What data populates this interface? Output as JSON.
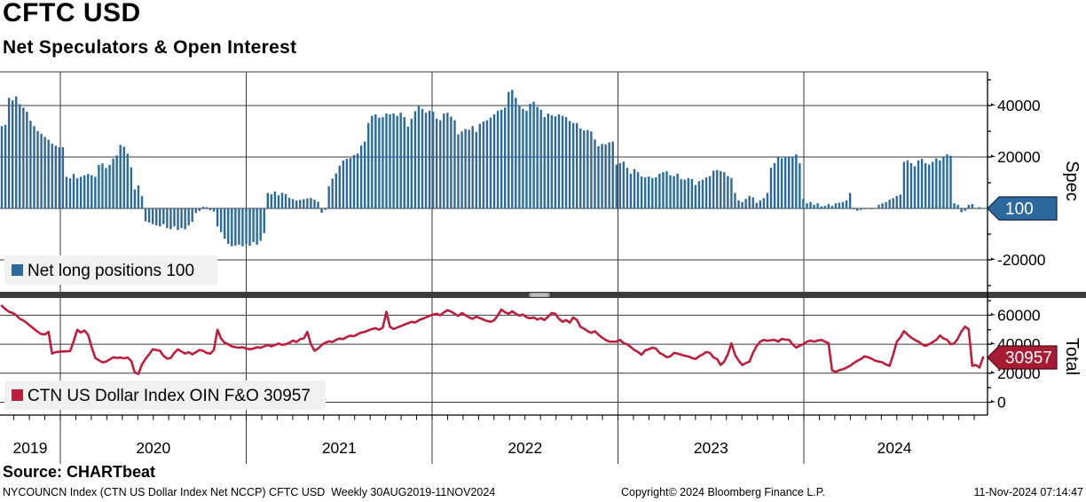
{
  "header": {
    "title": "CFTC USD",
    "subtitle": "Net Speculators & Open Interest"
  },
  "footer": {
    "source": "Source: CHARTbeat",
    "description": "NYCOUNCN Index (CTN US Dollar Index Net NCCP) CFTC USD  Weekly 30AUG2019-11NOV2024",
    "copyright": "Copyright© 2024 Bloomberg Finance L.P.",
    "timestamp": "11-Nov-2024 07:14:47"
  },
  "colors": {
    "bar_blue": "#2c699e",
    "line_red": "#be1e3c",
    "tag_blue": "#2c699e",
    "tag_red": "#a81c33",
    "tag_border_blue": "#14253c",
    "tag_border_red": "#4d0d18",
    "separator": "#3d3d3d",
    "handle": "#9a9a9a",
    "legend_bg": "#f1f1f1",
    "grid": "#3a3a3a",
    "axis": "#000000"
  },
  "chart_data": [
    {
      "type": "bar",
      "panel_title": "Spec",
      "legend": "Net long positions 100",
      "last_value_tag": "100",
      "frequency": "weekly",
      "x_range": "30AUG2019-11NOV2024",
      "year_labels": [
        "2019",
        "2020",
        "2021",
        "2022",
        "2023",
        "2024"
      ],
      "labeled_ticks": [
        40000,
        20000,
        -20000
      ],
      "gridline_values": [
        40000,
        20000,
        0,
        -20000
      ],
      "minor_ticks": [
        50000,
        30000,
        10000,
        -10000,
        -30000
      ],
      "ylim": [
        -31500,
        53000
      ],
      "values": [
        32000,
        32500,
        43000,
        42000,
        43600,
        40500,
        39200,
        37600,
        34100,
        32000,
        30100,
        29000,
        27800,
        26700,
        25200,
        24400,
        23800,
        23800,
        12300,
        11700,
        13400,
        11700,
        12300,
        12900,
        13400,
        12900,
        12300,
        16900,
        17500,
        15700,
        16900,
        19400,
        20600,
        24700,
        24000,
        21300,
        16000,
        7400,
        8900,
        4800,
        -5000,
        -5500,
        -6100,
        -6600,
        -7000,
        -6100,
        -7600,
        -8100,
        -7000,
        -8400,
        -7600,
        -8100,
        -6600,
        -5200,
        -1800,
        -1000,
        600,
        500,
        -700,
        -1200,
        -7000,
        -9200,
        -11800,
        -13800,
        -14700,
        -14500,
        -14100,
        -14700,
        -13800,
        -14500,
        -13100,
        -14100,
        -12600,
        -9600,
        6000,
        5500,
        6600,
        5100,
        6100,
        5600,
        4100,
        3600,
        3100,
        3300,
        3600,
        3900,
        4100,
        3400,
        2600,
        -1700,
        -600,
        8600,
        11600,
        13600,
        16600,
        18600,
        19300,
        19600,
        20800,
        21400,
        24500,
        26000,
        33200,
        36000,
        36600,
        35300,
        35500,
        36900,
        36600,
        36900,
        36000,
        37200,
        35500,
        31800,
        34900,
        37800,
        40100,
        38700,
        37200,
        38000,
        37600,
        34900,
        34300,
        36900,
        37200,
        35700,
        34300,
        28800,
        29900,
        30900,
        30600,
        32000,
        29700,
        32900,
        33800,
        34300,
        35300,
        36600,
        38000,
        38400,
        39200,
        45300,
        46100,
        43000,
        40100,
        38700,
        38000,
        40700,
        41500,
        39500,
        38400,
        35500,
        36900,
        36200,
        35800,
        36600,
        36000,
        35500,
        34000,
        33200,
        33200,
        31100,
        30300,
        30500,
        29900,
        26800,
        24200,
        25100,
        24900,
        25700,
        26000,
        17000,
        17600,
        18200,
        15800,
        13500,
        15300,
        14100,
        12400,
        12100,
        12400,
        11800,
        12100,
        13500,
        14100,
        14500,
        12900,
        12600,
        13500,
        11400,
        11200,
        11800,
        11400,
        9100,
        10600,
        11200,
        12100,
        12600,
        14700,
        14900,
        14500,
        14100,
        12600,
        11800,
        6000,
        3100,
        2500,
        3700,
        4900,
        4300,
        2200,
        3100,
        4000,
        6000,
        15800,
        17600,
        19900,
        19500,
        20200,
        19900,
        20200,
        21000,
        17500,
        3700,
        2000,
        2500,
        1400,
        2000,
        800,
        1000,
        1700,
        1000,
        2000,
        2200,
        2500,
        3100,
        6000,
        -300,
        -900,
        -600,
        -300,
        -100,
        -300,
        200,
        1400,
        2000,
        2500,
        3400,
        4000,
        4900,
        5400,
        18100,
        18700,
        17600,
        16400,
        18700,
        19300,
        17600,
        17000,
        18100,
        19500,
        18700,
        19900,
        21000,
        20500,
        2000,
        1400,
        -1500,
        -900,
        1400,
        1700,
        200,
        500,
        100
      ]
    },
    {
      "type": "line",
      "panel_title": "Total",
      "legend": "CTN US Dollar Index OIN F&O 30957",
      "last_value_tag": "30957",
      "frequency": "weekly",
      "x_range": "30AUG2019-11NOV2024",
      "labeled_ticks": [
        60000,
        40000,
        20000,
        0
      ],
      "gridline_values": [
        60000,
        40000,
        20000,
        0
      ],
      "minor_ticks": [
        70000,
        50000,
        30000,
        10000
      ],
      "ylim": [
        -9000,
        71000
      ],
      "values": [
        66500,
        64200,
        62400,
        61500,
        60000,
        57500,
        56400,
        54500,
        52500,
        50500,
        48500,
        47000,
        46700,
        48500,
        33500,
        34500,
        34800,
        35000,
        35100,
        35200,
        42000,
        50000,
        48000,
        49500,
        46500,
        38000,
        30500,
        29000,
        27500,
        28000,
        29500,
        31000,
        30500,
        30800,
        30300,
        30800,
        28500,
        20500,
        19500,
        26000,
        30000,
        33000,
        36500,
        36000,
        35500,
        32000,
        30000,
        30500,
        34000,
        36500,
        35000,
        33500,
        34500,
        33000,
        34500,
        36000,
        35500,
        34000,
        33500,
        36000,
        50000,
        44000,
        41000,
        40000,
        38500,
        38000,
        37600,
        38000,
        37000,
        36500,
        37000,
        38000,
        37500,
        38500,
        39500,
        38500,
        39500,
        40500,
        39500,
        40000,
        41000,
        42500,
        41500,
        43500,
        44000,
        48500,
        40000,
        35500,
        37000,
        39500,
        41000,
        42000,
        41500,
        43000,
        44000,
        43500,
        45000,
        46000,
        45500,
        47000,
        48000,
        48500,
        49500,
        50500,
        51000,
        50000,
        51500,
        62400,
        52000,
        50500,
        51500,
        52500,
        53500,
        54500,
        55500,
        55000,
        56500,
        57500,
        58500,
        59500,
        60500,
        61000,
        60000,
        62000,
        63500,
        62500,
        61000,
        59500,
        61500,
        60000,
        58500,
        57500,
        59000,
        58000,
        57000,
        56000,
        55500,
        56500,
        60000,
        63900,
        62000,
        61000,
        62700,
        61000,
        59700,
        60500,
        58500,
        57900,
        58500,
        57000,
        58000,
        56700,
        59000,
        61500,
        60900,
        57500,
        55500,
        56700,
        54900,
        58500,
        56700,
        52000,
        50700,
        49000,
        47800,
        49000,
        46600,
        44500,
        43000,
        41800,
        41800,
        41800,
        43000,
        40600,
        40000,
        38000,
        36000,
        34600,
        32800,
        35800,
        36500,
        37600,
        37000,
        34000,
        32800,
        31000,
        31600,
        34000,
        33500,
        32800,
        32000,
        31600,
        30500,
        29800,
        31600,
        33000,
        34600,
        34000,
        31000,
        29800,
        25700,
        28000,
        33000,
        40600,
        32800,
        28700,
        25700,
        27000,
        28000,
        34000,
        38800,
        41800,
        43000,
        42400,
        42800,
        43000,
        41800,
        43600,
        43200,
        43000,
        40000,
        37600,
        39000,
        40000,
        41800,
        42500,
        41800,
        42500,
        43000,
        41800,
        40600,
        22100,
        20900,
        22100,
        22700,
        23900,
        25100,
        26900,
        28500,
        29800,
        31600,
        31000,
        30000,
        28700,
        28000,
        27500,
        26000,
        25100,
        32800,
        41800,
        44800,
        49000,
        46600,
        44500,
        43000,
        41800,
        40000,
        38800,
        40000,
        41500,
        43000,
        46000,
        44000,
        43000,
        40000,
        40600,
        44000,
        49000,
        52100,
        50300,
        25100,
        25700,
        23900,
        30957
      ]
    }
  ]
}
